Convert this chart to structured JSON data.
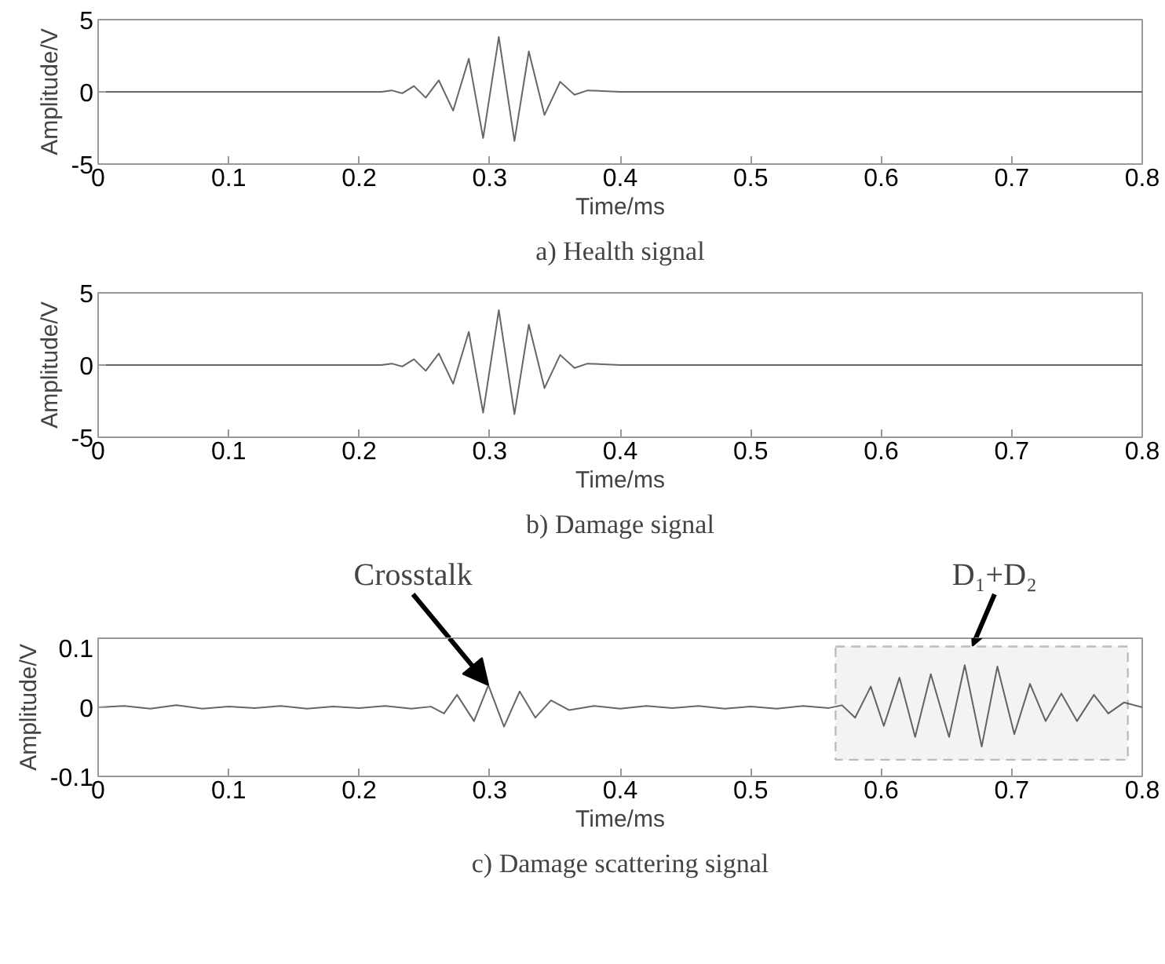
{
  "chart_data": [
    {
      "type": "line",
      "title": "a) Health signal",
      "xlabel": "Time/ms",
      "ylabel": "Amplitude/V",
      "xlim": [
        0,
        0.8
      ],
      "ylim": [
        -5,
        5
      ],
      "xticks": [
        0,
        0.1,
        0.2,
        0.3,
        0.4,
        0.5,
        0.6,
        0.7,
        0.8
      ],
      "yticks": [
        -5,
        0,
        5
      ],
      "color": "#666666",
      "x": [
        0,
        0.21,
        0.217,
        0.225,
        0.233,
        0.242,
        0.251,
        0.261,
        0.272,
        0.284,
        0.295,
        0.307,
        0.319,
        0.33,
        0.342,
        0.354,
        0.365,
        0.375,
        0.4,
        0.5,
        0.6,
        0.7,
        0.8
      ],
      "values": [
        0,
        0,
        0,
        0.1,
        -0.1,
        0.4,
        -0.4,
        0.8,
        -1.3,
        2.3,
        -3.2,
        3.8,
        -3.4,
        2.8,
        -1.6,
        0.7,
        -0.2,
        0.1,
        0,
        0,
        0,
        0,
        0
      ]
    },
    {
      "type": "line",
      "title": "b) Damage signal",
      "xlabel": "Time/ms",
      "ylabel": "Amplitude/V",
      "xlim": [
        0,
        0.8
      ],
      "ylim": [
        -5,
        5
      ],
      "xticks": [
        0,
        0.1,
        0.2,
        0.3,
        0.4,
        0.5,
        0.6,
        0.7,
        0.8
      ],
      "yticks": [
        -5,
        0,
        5
      ],
      "color": "#666666",
      "x": [
        0,
        0.21,
        0.217,
        0.225,
        0.233,
        0.242,
        0.251,
        0.261,
        0.272,
        0.284,
        0.295,
        0.307,
        0.319,
        0.33,
        0.342,
        0.354,
        0.365,
        0.375,
        0.4,
        0.5,
        0.6,
        0.7,
        0.8
      ],
      "values": [
        0,
        0,
        0,
        0.1,
        -0.1,
        0.4,
        -0.4,
        0.8,
        -1.3,
        2.3,
        -3.3,
        3.8,
        -3.4,
        2.8,
        -1.6,
        0.7,
        -0.2,
        0.1,
        0,
        0,
        0,
        0,
        0
      ]
    },
    {
      "type": "line",
      "title": "c) Damage scattering signal",
      "xlabel": "Time/ms",
      "ylabel": "Amplitude/V",
      "xlim": [
        0,
        0.8
      ],
      "ylim": [
        -0.1,
        0.1
      ],
      "xticks": [
        0,
        0.1,
        0.2,
        0.3,
        0.4,
        0.5,
        0.6,
        0.7,
        0.8
      ],
      "yticks": [
        -0.1,
        0,
        0.1
      ],
      "color": "#666666",
      "annotations": [
        {
          "text": "Crosstalk",
          "x": 0.299,
          "y": 0.032
        },
        {
          "text": "D₁+D₂",
          "x": 0.67,
          "y": 0.089
        }
      ],
      "bands": [
        {
          "axis": "x",
          "from": 0.565,
          "to": 0.789,
          "color": "#333333"
        }
      ],
      "x": [
        0,
        0.02,
        0.04,
        0.06,
        0.08,
        0.1,
        0.12,
        0.14,
        0.16,
        0.18,
        0.2,
        0.22,
        0.24,
        0.255,
        0.265,
        0.275,
        0.288,
        0.299,
        0.311,
        0.323,
        0.335,
        0.347,
        0.361,
        0.38,
        0.4,
        0.42,
        0.44,
        0.46,
        0.48,
        0.5,
        0.52,
        0.54,
        0.56,
        0.57,
        0.58,
        0.592,
        0.602,
        0.614,
        0.626,
        0.638,
        0.652,
        0.664,
        0.677,
        0.689,
        0.702,
        0.714,
        0.726,
        0.738,
        0.75,
        0.763,
        0.774,
        0.786,
        0.8
      ],
      "values": [
        0,
        0.002,
        -0.002,
        0.003,
        -0.002,
        0.001,
        -0.001,
        0.002,
        -0.002,
        0.001,
        -0.001,
        0.002,
        -0.002,
        0.001,
        -0.009,
        0.018,
        -0.02,
        0.032,
        -0.028,
        0.023,
        -0.015,
        0.01,
        -0.004,
        0.002,
        -0.002,
        0.002,
        -0.001,
        0.002,
        -0.002,
        0.001,
        -0.002,
        0.002,
        -0.001,
        0.003,
        -0.015,
        0.03,
        -0.027,
        0.043,
        -0.043,
        0.048,
        -0.043,
        0.061,
        -0.057,
        0.059,
        -0.039,
        0.034,
        -0.02,
        0.02,
        -0.02,
        0.018,
        -0.009,
        0.007,
        0
      ]
    }
  ]
}
